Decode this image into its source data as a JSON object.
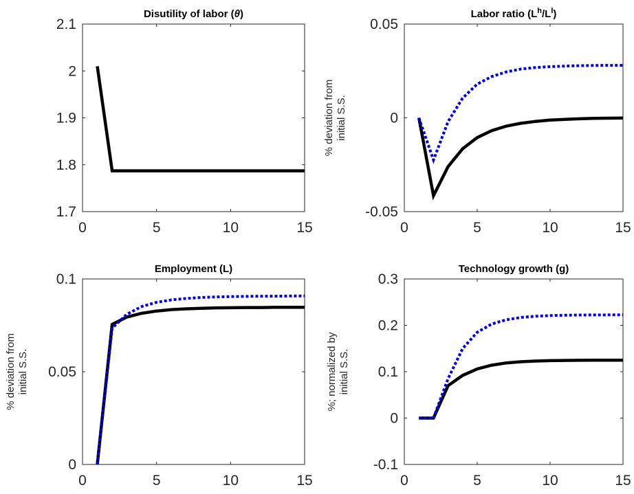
{
  "figure": {
    "width": 922,
    "height": 719
  },
  "colors": {
    "baseline": "#000000",
    "alternative": "#0000e0",
    "axes": "#262626"
  },
  "chart_data": [
    {
      "type": "line",
      "title": "Disutility of labor (θ)",
      "title_parts": {
        "main": "Disutility of labor (",
        "italic": "θ",
        "end": ")"
      },
      "ylabel_lines": [],
      "xlim": [
        0,
        15
      ],
      "ylim": [
        1.7,
        2.1
      ],
      "xticks": [
        0,
        5,
        10,
        15
      ],
      "xtick_labels": [
        "0",
        "5",
        "10",
        "15"
      ],
      "yticks": [
        1.7,
        1.8,
        1.9,
        2.0,
        2.1
      ],
      "ytick_labels": [
        "1.7",
        "1.8",
        "1.9",
        "2",
        "2.1"
      ],
      "series": [
        {
          "style": "solid",
          "color": "#000000",
          "x": [
            1,
            2,
            3,
            4,
            5,
            6,
            7,
            8,
            9,
            10,
            11,
            12,
            13,
            14,
            15
          ],
          "y": [
            2.01,
            1.787,
            1.787,
            1.787,
            1.787,
            1.787,
            1.787,
            1.787,
            1.787,
            1.787,
            1.787,
            1.787,
            1.787,
            1.787,
            1.787
          ]
        }
      ]
    },
    {
      "type": "line",
      "title": "Labor ratio (L^h/L^l)",
      "title_parts": {
        "main": "Labor ratio (L",
        "sup1": "h",
        "mid": "/L",
        "sup2": "l",
        "end": ")"
      },
      "ylabel_lines": [
        "% deviation from",
        "initial S.S."
      ],
      "xlim": [
        0,
        15
      ],
      "ylim": [
        -0.05,
        0.05
      ],
      "xticks": [
        0,
        5,
        10,
        15
      ],
      "xtick_labels": [
        "0",
        "5",
        "10",
        "15"
      ],
      "yticks": [
        -0.05,
        0,
        0.05
      ],
      "ytick_labels": [
        "-0.05",
        "0",
        "0.05"
      ],
      "series": [
        {
          "style": "solid",
          "color": "#000000",
          "x": [
            1,
            2,
            3,
            4,
            5,
            6,
            7,
            8,
            9,
            10,
            11,
            12,
            13,
            14,
            15
          ],
          "y": [
            0,
            -0.0415,
            -0.026,
            -0.0165,
            -0.0105,
            -0.0068,
            -0.0044,
            -0.0029,
            -0.0019,
            -0.0012,
            -0.0008,
            -0.0005,
            -0.0003,
            -0.0002,
            -0.0001
          ]
        },
        {
          "style": "dotted",
          "color": "#0000e0",
          "x": [
            1,
            2,
            3,
            4,
            5,
            6,
            7,
            8,
            9,
            10,
            11,
            12,
            13,
            14,
            15
          ],
          "y": [
            0,
            -0.0225,
            -0.002,
            0.0105,
            0.018,
            0.022,
            0.0245,
            0.026,
            0.0268,
            0.0273,
            0.0276,
            0.0278,
            0.0279,
            0.028,
            0.028
          ]
        }
      ]
    },
    {
      "type": "line",
      "title": "Employment (L)",
      "title_parts": {
        "main": "Employment (L)"
      },
      "ylabel_lines": [
        "% deviation from",
        "initial S.S."
      ],
      "xlim": [
        0,
        15
      ],
      "ylim": [
        0,
        0.1
      ],
      "xticks": [
        0,
        5,
        10,
        15
      ],
      "xtick_labels": [
        "0",
        "5",
        "10",
        "15"
      ],
      "yticks": [
        0,
        0.05,
        0.1
      ],
      "ytick_labels": [
        "0",
        "0.05",
        "0.1"
      ],
      "series": [
        {
          "style": "solid",
          "color": "#000000",
          "x": [
            1,
            2,
            3,
            4,
            5,
            6,
            7,
            8,
            9,
            10,
            11,
            12,
            13,
            14,
            15
          ],
          "y": [
            0,
            0.0755,
            0.0795,
            0.0815,
            0.0827,
            0.0835,
            0.0839,
            0.0842,
            0.0844,
            0.0845,
            0.0846,
            0.0846,
            0.0847,
            0.0847,
            0.0847
          ]
        },
        {
          "style": "dotted",
          "color": "#0000e0",
          "x": [
            1,
            2,
            3,
            4,
            5,
            6,
            7,
            8,
            9,
            10,
            11,
            12,
            13,
            14,
            15
          ],
          "y": [
            0,
            0.0735,
            0.081,
            0.0851,
            0.0874,
            0.0887,
            0.0895,
            0.09,
            0.0903,
            0.0905,
            0.0906,
            0.0907,
            0.0907,
            0.0908,
            0.0908
          ]
        }
      ]
    },
    {
      "type": "line",
      "title": "Technology growth (g)",
      "title_parts": {
        "main": "Technology growth (g)"
      },
      "ylabel_lines": [
        "%; normalized by",
        "initial S.S."
      ],
      "xlim": [
        0,
        15
      ],
      "ylim": [
        -0.1,
        0.3
      ],
      "xticks": [
        0,
        5,
        10,
        15
      ],
      "xtick_labels": [
        "0",
        "5",
        "10",
        "15"
      ],
      "yticks": [
        -0.1,
        0,
        0.1,
        0.2,
        0.3
      ],
      "ytick_labels": [
        "-0.1",
        "0",
        "0.1",
        "0.2",
        "0.3"
      ],
      "series": [
        {
          "style": "solid",
          "color": "#000000",
          "x": [
            1,
            2,
            3,
            4,
            5,
            6,
            7,
            8,
            9,
            10,
            11,
            12,
            13,
            14,
            15
          ],
          "y": [
            0,
            0,
            0.07,
            0.092,
            0.106,
            0.114,
            0.119,
            0.1215,
            0.123,
            0.1238,
            0.1243,
            0.1246,
            0.1247,
            0.1248,
            0.1248
          ]
        },
        {
          "style": "dotted",
          "color": "#0000e0",
          "x": [
            1,
            2,
            3,
            4,
            5,
            6,
            7,
            8,
            9,
            10,
            11,
            12,
            13,
            14,
            15
          ],
          "y": [
            0,
            0,
            0.085,
            0.15,
            0.185,
            0.203,
            0.212,
            0.217,
            0.2195,
            0.221,
            0.2218,
            0.2222,
            0.2224,
            0.2225,
            0.2225
          ]
        }
      ]
    }
  ]
}
